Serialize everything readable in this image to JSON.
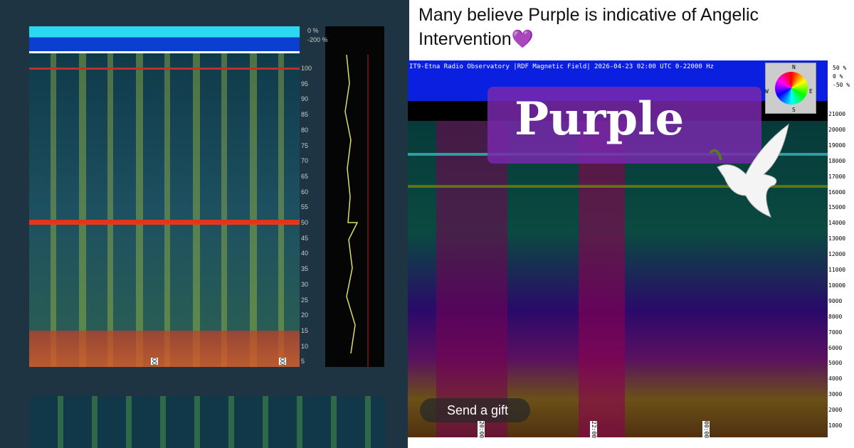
{
  "post": {
    "caption": "Many believe Purple is indicative of Angelic Intervention💜",
    "overlay_text": "Purple",
    "gift_button": "Send a gift"
  },
  "left_spectrogram": {
    "percent_labels": [
      "0 %",
      "-200 %"
    ],
    "y_labels": [
      "100",
      "95",
      "90",
      "85",
      "80",
      "75",
      "70",
      "65",
      "60",
      "55",
      "50",
      "45",
      "40",
      "35",
      "30",
      "25",
      "20",
      "15",
      "10",
      "5"
    ],
    "time_labels": [
      "00",
      "00"
    ]
  },
  "right_spectrogram": {
    "header": "IT9-Etna Radio Observatory |RDF Magnetic Field| 2026-04-23 02:00 UTC 0-22000 Hz",
    "percent_labels": [
      "50 %",
      "0 %",
      "-50 %"
    ],
    "y_labels": [
      "21000",
      "20000",
      "19000",
      "18000",
      "17000",
      "16000",
      "15000",
      "14000",
      "13000",
      "12000",
      "11000",
      "10000",
      "9000",
      "8000",
      "7000",
      "6000",
      "5000",
      "4000",
      "3000",
      "2000",
      "1000"
    ],
    "time_labels": [
      "20:00",
      "22:00",
      "00:00"
    ],
    "compass": [
      "N",
      "E",
      "S",
      "W"
    ]
  }
}
